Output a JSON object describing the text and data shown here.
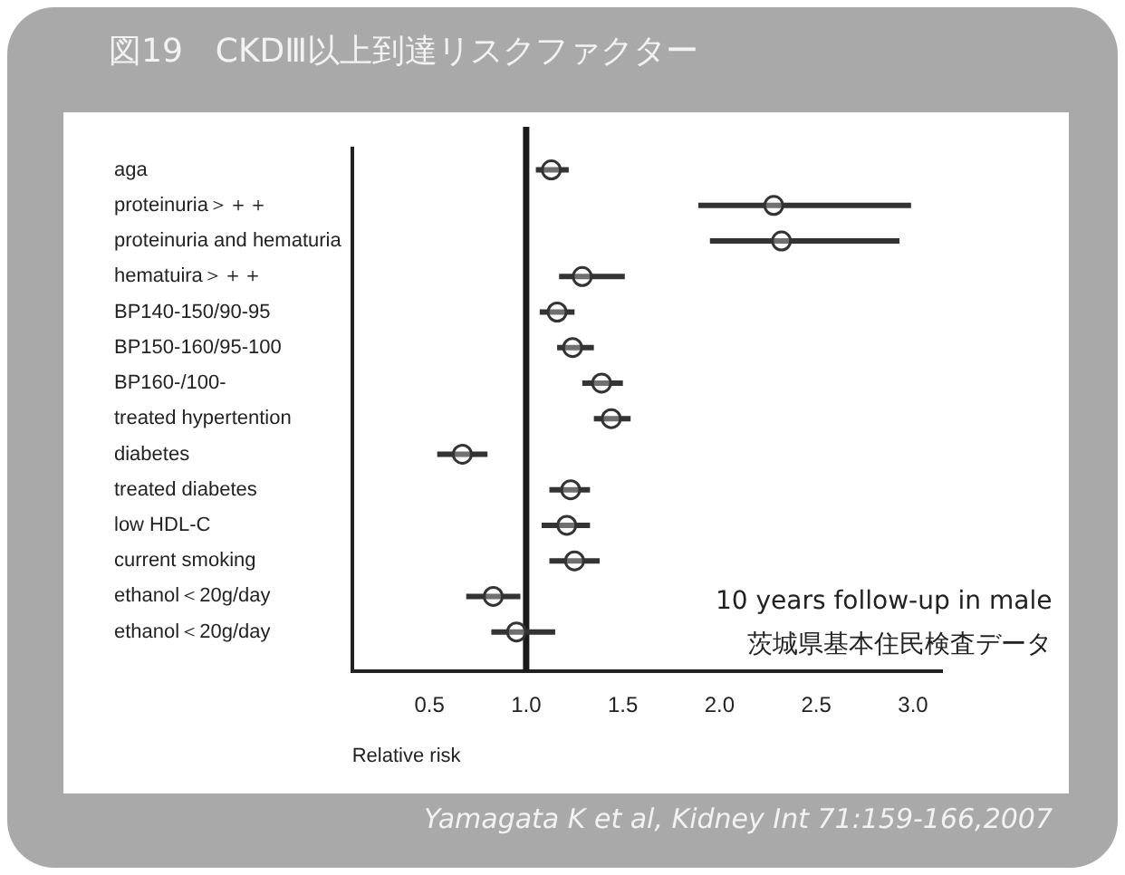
{
  "chart_data": {
    "type": "scatter",
    "title": "図19　CKDⅢ以上到達リスクファクター",
    "xlabel": "Relative risk",
    "categories": [
      "aga",
      "proteinuria＞＋＋",
      "proteinuria and hematuria",
      "hematuira＞＋＋",
      "BP140-150/90-95",
      "BP150-160/95-100",
      "BP160-/100-",
      "treated hypertention",
      "diabetes",
      "treated diabetes",
      "low HDL-C",
      "current smoking",
      "ethanol＜20g/day",
      "ethanol＜20g/day"
    ],
    "orientation": "horizontal",
    "series": [
      {
        "color": "#333333",
        "values": [
          1.13,
          2.28,
          2.32,
          1.29,
          1.16,
          1.24,
          1.39,
          1.44,
          0.67,
          1.23,
          1.21,
          1.25,
          0.83,
          0.95
        ],
        "errors": [
          [
            1.05,
            1.22
          ],
          [
            1.89,
            2.99
          ],
          [
            1.95,
            2.93
          ],
          [
            1.17,
            1.51
          ],
          [
            1.07,
            1.25
          ],
          [
            1.16,
            1.35
          ],
          [
            1.29,
            1.5
          ],
          [
            1.35,
            1.54
          ],
          [
            0.54,
            0.8
          ],
          [
            1.12,
            1.33
          ],
          [
            1.08,
            1.33
          ],
          [
            1.12,
            1.38
          ],
          [
            0.69,
            0.97
          ],
          [
            0.82,
            1.15
          ]
        ]
      }
    ],
    "xlim": [
      0.1,
      3.15
    ],
    "xticks": [
      0.5,
      {
        "value": 1,
        "label": "1.0"
      },
      1.5,
      {
        "value": 2,
        "label": "2.0"
      },
      2.5,
      {
        "value": 3,
        "label": "3.0"
      }
    ],
    "ref_lines": [
      {
        "axis": "x",
        "value": 1,
        "color": "#1a1a1a"
      }
    ],
    "marker": "circle",
    "grid": false,
    "legend": false,
    "annotations": [
      "10 years follow-up in male",
      "茨城県基本住民検査データ",
      "Yamagata K et al, Kidney Int 71:159-166,2007"
    ]
  }
}
